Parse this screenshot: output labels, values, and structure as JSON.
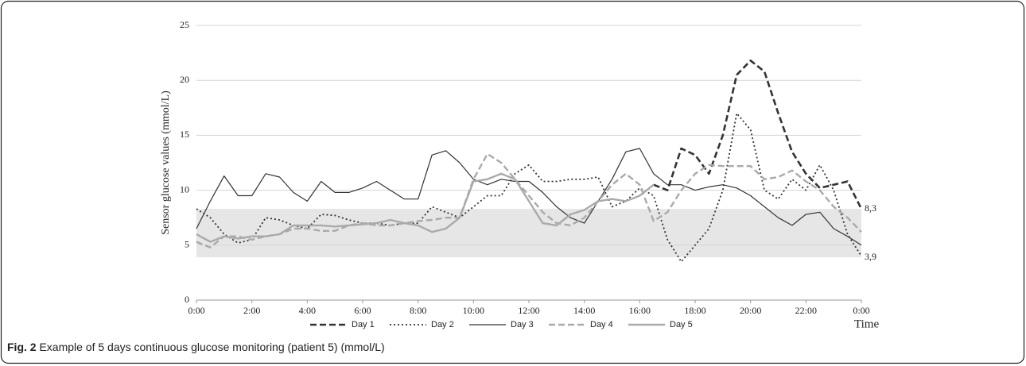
{
  "chart_data": {
    "type": "line",
    "y_label": "Sensor glucose values (mmol/L)",
    "x_label": "Time",
    "caption_label": "Fig. 2",
    "caption_text": "Example of 5 days continuous glucose monitoring (patient 5) (mmol/L)",
    "x": [
      0,
      0.5,
      1,
      1.5,
      2,
      2.5,
      3,
      3.5,
      4,
      4.5,
      5,
      5.5,
      6,
      6.5,
      7,
      7.5,
      8,
      8.5,
      9,
      9.5,
      10,
      10.5,
      11,
      11.5,
      12,
      12.5,
      13,
      13.5,
      14,
      14.5,
      15,
      15.5,
      16,
      16.5,
      17,
      17.5,
      18,
      18.5,
      19,
      19.5,
      20,
      20.5,
      21,
      21.5,
      22,
      22.5,
      23,
      23.5,
      24
    ],
    "xlim": [
      0,
      24
    ],
    "xticks": [
      {
        "value": 0,
        "label": "0:00"
      },
      {
        "value": 2,
        "label": "2:00"
      },
      {
        "value": 4,
        "label": "4:00"
      },
      {
        "value": 6,
        "label": "6:00"
      },
      {
        "value": 8,
        "label": "8:00"
      },
      {
        "value": 10,
        "label": "10:00"
      },
      {
        "value": 12,
        "label": "12:00"
      },
      {
        "value": 14,
        "label": "14:00"
      },
      {
        "value": 16,
        "label": "16:00"
      },
      {
        "value": 18,
        "label": "18:00"
      },
      {
        "value": 20,
        "label": "20:00"
      },
      {
        "value": 22,
        "label": "22:00"
      },
      {
        "value": 24,
        "label": "0:00"
      }
    ],
    "ylim": [
      0,
      25
    ],
    "yticks": [
      0,
      5,
      10,
      15,
      20,
      25
    ],
    "grid": true,
    "legend": "bottom",
    "reference_band": [
      {
        "value": 8.3,
        "label": "8,3"
      },
      {
        "value": 3.9,
        "label": "3,9"
      }
    ],
    "series": [
      {
        "name": "Day 1",
        "color": "#333333",
        "style": "dashed",
        "width": 2.6,
        "values": [
          null,
          null,
          null,
          null,
          null,
          null,
          null,
          null,
          null,
          null,
          null,
          null,
          null,
          null,
          null,
          null,
          null,
          null,
          null,
          null,
          null,
          null,
          null,
          null,
          null,
          null,
          null,
          null,
          null,
          null,
          null,
          null,
          null,
          10.5,
          10,
          13.8,
          13.2,
          11.5,
          15,
          20.5,
          21.8,
          20.8,
          17,
          13.5,
          11.5,
          10.2,
          10.5,
          10.8,
          8.3
        ]
      },
      {
        "name": "Day 2",
        "color": "#333333",
        "style": "dotted",
        "width": 1.8,
        "values": [
          8.3,
          7.5,
          6,
          5.2,
          5.5,
          7.5,
          7.3,
          6.8,
          6.5,
          7.8,
          7.7,
          7.3,
          7,
          7,
          6.8,
          7,
          7,
          8.5,
          8,
          7.5,
          8.5,
          9.5,
          9.5,
          11.5,
          12.3,
          10.8,
          10.8,
          11,
          11,
          11.2,
          8.5,
          9,
          10.2,
          9.5,
          5.5,
          3.5,
          5,
          6.5,
          10,
          17,
          15.5,
          10,
          9.2,
          11,
          10,
          12.3,
          10,
          6,
          4
        ]
      },
      {
        "name": "Day 3",
        "color": "#333333",
        "style": "solid",
        "width": 1.2,
        "values": [
          6.5,
          9,
          11.3,
          9.5,
          9.5,
          11.5,
          11.2,
          9.8,
          9,
          10.8,
          9.8,
          9.8,
          10.2,
          10.8,
          10,
          9.2,
          9.2,
          13.2,
          13.6,
          12.5,
          11,
          10.5,
          11,
          10.8,
          10.8,
          9.8,
          8.5,
          7.5,
          7,
          9,
          11,
          13.5,
          13.8,
          11.5,
          10.5,
          10.5,
          10,
          10.3,
          10.5,
          10.2,
          9.5,
          8.5,
          7.5,
          6.8,
          7.8,
          8,
          6.5,
          5.8,
          5
        ]
      },
      {
        "name": "Day 4",
        "color": "#aaaaaa",
        "style": "dashed",
        "width": 2.4,
        "values": [
          5.3,
          4.8,
          5.8,
          5.8,
          5.5,
          5.8,
          6,
          6.5,
          6.5,
          6.3,
          6.3,
          6.8,
          7,
          6.8,
          6.8,
          7,
          7.2,
          7.3,
          7.5,
          7.5,
          11,
          13.3,
          12.5,
          11,
          9.5,
          8,
          7,
          6.8,
          7.5,
          9,
          10.5,
          11.5,
          10.5,
          7.2,
          8,
          10,
          11.5,
          12.3,
          12.2,
          12.2,
          12.2,
          11,
          11.2,
          11.8,
          10.8,
          10,
          8.5,
          7.5,
          6.2
        ]
      },
      {
        "name": "Day 5",
        "color": "#aaaaaa",
        "style": "solid",
        "width": 2.4,
        "values": [
          6,
          5.3,
          5.8,
          5.6,
          5.8,
          5.8,
          6,
          6.8,
          6.8,
          6.8,
          6.7,
          6.8,
          6.9,
          7,
          7.3,
          7,
          6.8,
          6.2,
          6.5,
          7.5,
          10.8,
          11,
          11.5,
          11,
          9,
          7,
          6.8,
          7.8,
          8.2,
          9,
          9.2,
          9,
          9.5,
          10.5,
          null,
          null,
          null,
          null,
          null,
          null,
          null,
          null,
          null,
          null,
          null,
          null,
          null,
          null,
          null
        ]
      }
    ]
  }
}
